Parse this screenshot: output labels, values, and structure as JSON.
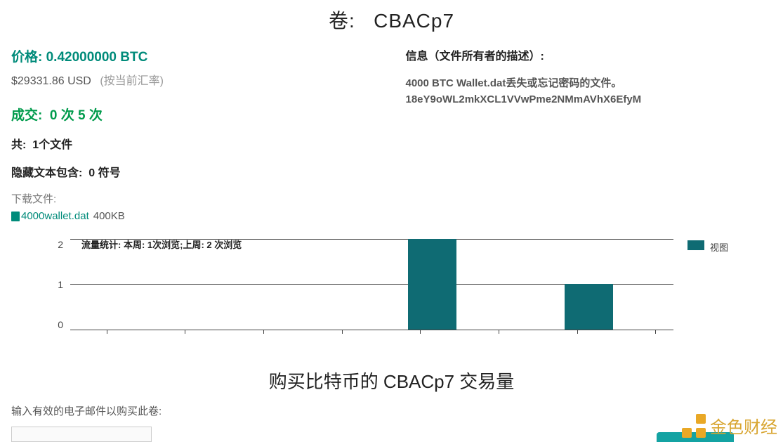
{
  "title_prefix": "卷:",
  "title_name": "CBACp7",
  "price": {
    "label": "价格:",
    "amount": "0.42000000 BTC"
  },
  "usd": {
    "amount": "$29331.86 USD",
    "note": "(按当前汇率)"
  },
  "deal": {
    "label": "成交:",
    "value": "0 次 5 次"
  },
  "total_files": {
    "label": "共:",
    "value": "1个文件"
  },
  "hidden_text": {
    "label": "隐藏文本包含:",
    "value": "0 符号"
  },
  "download": {
    "label": "下载文件:",
    "filename": "4000wallet.dat",
    "size": "400KB"
  },
  "info": {
    "heading": "信息（文件所有者的描述）:",
    "line1": "4000 BTC Wallet.dat丢失或忘记密码的文件。",
    "line2": "18eY9oWL2mkXCL1VVwPme2NMmAVhX6EfyM"
  },
  "chart": {
    "stats_label": "流量统计: 本周: 1次浏览;上周:   2 次浏览",
    "legend_label": "视图",
    "legend_color": "#0f6b73",
    "y_max": 2,
    "y_ticks": [
      "2",
      "1",
      "0"
    ],
    "grid_color": "#444444",
    "bar_color": "#0f6b73",
    "bars": [
      {
        "left_pct": 56,
        "width_pct": 8,
        "value": 2
      },
      {
        "left_pct": 82,
        "width_pct": 8,
        "value": 1
      }
    ],
    "x_ticks_pct": [
      6,
      19,
      32,
      45,
      58,
      71,
      84,
      97
    ]
  },
  "buy_heading": "购买比特币的 CBACp7 交易量",
  "email_prompt": "输入有效的电子邮件以购买此卷:",
  "watermark_text": "金色财经"
}
